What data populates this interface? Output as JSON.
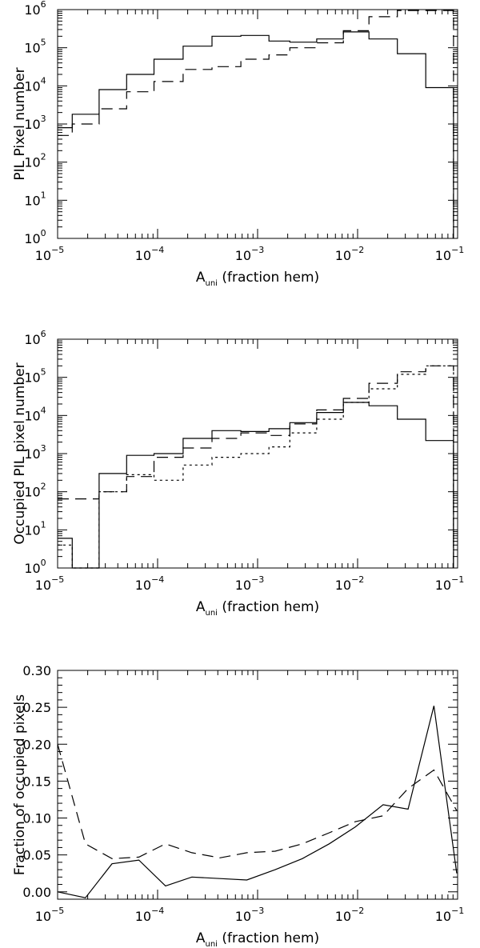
{
  "chart_data": [
    {
      "type": "line",
      "step": true,
      "xscale": "log",
      "yscale": "log",
      "xlim": [
        1e-05,
        0.1
      ],
      "ylim": [
        1,
        1000000
      ],
      "xlabel": {
        "main": "A",
        "sub": "uni",
        "rest": " (fraction hem)"
      },
      "ylabel": "PIL Pixel number",
      "xticks": [
        {
          "base": "10",
          "exp": "−5"
        },
        {
          "base": "10",
          "exp": "−4"
        },
        {
          "base": "10",
          "exp": "−3"
        },
        {
          "base": "10",
          "exp": "−2"
        },
        {
          "base": "10",
          "exp": "−1"
        }
      ],
      "yticks": [
        {
          "base": "10",
          "exp": "0"
        },
        {
          "base": "10",
          "exp": "1"
        },
        {
          "base": "10",
          "exp": "2"
        },
        {
          "base": "10",
          "exp": "3"
        },
        {
          "base": "10",
          "exp": "4"
        },
        {
          "base": "10",
          "exp": "5"
        },
        {
          "base": "10",
          "exp": "6"
        }
      ],
      "bin_edges": [
        1e-05,
        1.4e-05,
        2.6e-05,
        4.9e-05,
        9.2e-05,
        0.00018,
        0.00035,
        0.00068,
        0.0013,
        0.0021,
        0.0039,
        0.0072,
        0.013,
        0.025,
        0.048,
        0.091
      ],
      "series": [
        {
          "style": "solid",
          "values": [
            800,
            1800,
            8000,
            20000,
            50000,
            110000,
            200000,
            210000,
            150000,
            140000,
            170000,
            260000,
            170000,
            70000,
            9000
          ]
        },
        {
          "style": "dashed",
          "values": [
            500,
            1000,
            2500,
            7000,
            13000,
            27000,
            32000,
            50000,
            65000,
            100000,
            135000,
            280000,
            650000,
            950000,
            950000
          ]
        }
      ]
    },
    {
      "type": "line",
      "step": true,
      "xscale": "log",
      "yscale": "log",
      "xlim": [
        1e-05,
        0.1
      ],
      "ylim": [
        1,
        1000000
      ],
      "xlabel": {
        "main": "A",
        "sub": "uni",
        "rest": " (fraction hem)"
      },
      "ylabel": "Occupied PIL pixel number",
      "xticks": [
        {
          "base": "10",
          "exp": "−5"
        },
        {
          "base": "10",
          "exp": "−4"
        },
        {
          "base": "10",
          "exp": "−3"
        },
        {
          "base": "10",
          "exp": "−2"
        },
        {
          "base": "10",
          "exp": "−1"
        }
      ],
      "yticks": [
        {
          "base": "10",
          "exp": "0"
        },
        {
          "base": "10",
          "exp": "1"
        },
        {
          "base": "10",
          "exp": "2"
        },
        {
          "base": "10",
          "exp": "3"
        },
        {
          "base": "10",
          "exp": "4"
        },
        {
          "base": "10",
          "exp": "5"
        },
        {
          "base": "10",
          "exp": "6"
        }
      ],
      "bin_edges": [
        1e-05,
        1.4e-05,
        2.6e-05,
        4.9e-05,
        9.2e-05,
        0.00018,
        0.00035,
        0.00068,
        0.0013,
        0.0021,
        0.0039,
        0.0072,
        0.013,
        0.025,
        0.048,
        0.091
      ],
      "series": [
        {
          "style": "solid",
          "values": [
            6,
            1,
            300,
            900,
            1000,
            2500,
            4000,
            3800,
            4500,
            6500,
            12000,
            22000,
            18000,
            8000,
            2200
          ]
        },
        {
          "style": "dashed",
          "values": [
            65,
            65,
            100,
            250,
            800,
            1400,
            2500,
            3500,
            3000,
            6000,
            14000,
            28000,
            70000,
            140000,
            200000
          ]
        },
        {
          "style": "dotted",
          "values": [
            4,
            1,
            100,
            280,
            200,
            500,
            800,
            1000,
            1500,
            3500,
            8000,
            22000,
            50000,
            120000,
            200000
          ]
        }
      ]
    },
    {
      "type": "line",
      "xscale": "log",
      "yscale": "linear",
      "xlim": [
        1e-05,
        0.1
      ],
      "ylim": [
        -0.01,
        0.3
      ],
      "xlabel": {
        "main": "A",
        "sub": "uni",
        "rest": " (fraction hem)"
      },
      "ylabel": "Fraction of occupied pixels",
      "xticks": [
        {
          "base": "10",
          "exp": "−5"
        },
        {
          "base": "10",
          "exp": "−4"
        },
        {
          "base": "10",
          "exp": "−3"
        },
        {
          "base": "10",
          "exp": "−2"
        },
        {
          "base": "10",
          "exp": "−1"
        }
      ],
      "yticks": [
        "0.00",
        "0.05",
        "0.10",
        "0.15",
        "0.20",
        "0.25",
        "0.30"
      ],
      "series": [
        {
          "style": "solid",
          "x": [
            1e-05,
            1.9e-05,
            3.5e-05,
            6.5e-05,
            0.00012,
            0.00022,
            0.00042,
            0.00078,
            0.0015,
            0.0028,
            0.0052,
            0.0095,
            0.018,
            0.032,
            0.058,
            0.098
          ],
          "values": [
            0.0,
            -0.008,
            0.038,
            0.043,
            0.008,
            0.02,
            0.018,
            0.016,
            0.03,
            0.045,
            0.065,
            0.088,
            0.118,
            0.112,
            0.252,
            0.025
          ]
        },
        {
          "style": "dashed",
          "x": [
            1e-05,
            1.9e-05,
            3.5e-05,
            6.5e-05,
            0.00012,
            0.00022,
            0.00042,
            0.00078,
            0.0015,
            0.0028,
            0.0052,
            0.0095,
            0.018,
            0.032,
            0.058,
            0.098
          ],
          "values": [
            0.2,
            0.065,
            0.045,
            0.047,
            0.065,
            0.053,
            0.046,
            0.053,
            0.055,
            0.065,
            0.08,
            0.095,
            0.103,
            0.14,
            0.165,
            0.11
          ]
        }
      ]
    }
  ]
}
